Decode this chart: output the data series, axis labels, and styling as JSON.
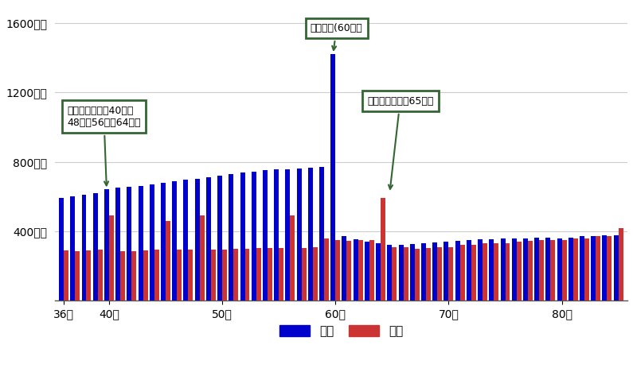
{
  "ages": [
    36,
    37,
    38,
    39,
    40,
    41,
    42,
    43,
    44,
    45,
    46,
    47,
    48,
    49,
    50,
    51,
    52,
    53,
    54,
    55,
    56,
    57,
    58,
    59,
    60,
    61,
    62,
    63,
    64,
    65,
    66,
    67,
    68,
    69,
    70,
    71,
    72,
    73,
    74,
    75,
    76,
    77,
    78,
    79,
    80,
    81,
    82,
    83,
    84,
    85
  ],
  "income": [
    590,
    600,
    610,
    620,
    640,
    650,
    655,
    660,
    670,
    680,
    690,
    695,
    700,
    710,
    720,
    730,
    740,
    745,
    750,
    755,
    755,
    760,
    765,
    770,
    1420,
    370,
    355,
    340,
    330,
    320,
    320,
    325,
    330,
    335,
    340,
    345,
    350,
    355,
    355,
    360,
    360,
    360,
    365,
    365,
    360,
    365,
    370,
    370,
    375,
    375
  ],
  "expense": [
    290,
    285,
    290,
    295,
    490,
    285,
    285,
    290,
    295,
    460,
    295,
    295,
    490,
    295,
    295,
    300,
    300,
    305,
    305,
    305,
    490,
    305,
    310,
    360,
    350,
    345,
    350,
    350,
    590,
    310,
    310,
    300,
    305,
    310,
    310,
    320,
    320,
    330,
    330,
    330,
    340,
    345,
    350,
    350,
    350,
    360,
    360,
    370,
    370,
    420
  ],
  "bar_color_income": "#0000cc",
  "bar_color_expense": "#cc3333",
  "ylim": [
    0,
    1700
  ],
  "yticks": [
    0,
    400,
    800,
    1200,
    1600
  ],
  "ytick_labels": [
    "",
    "400万円",
    "800万円",
    "1200万円",
    "1600万円"
  ],
  "xtick_ages": [
    36,
    40,
    50,
    60,
    70,
    80
  ],
  "xtick_labels": [
    "36歳",
    "40歳",
    "50歳",
    "60歳",
    "70歳",
    "80歳"
  ],
  "legend_income": "収入",
  "legend_expense": "支出",
  "annotation1_text": "車の買い替え（40歳、\n48歳、56歳、64歳）",
  "annotation2_text": "定年退職(60歳）",
  "annotation3_text": "年金受給開始（65歳）",
  "grid_color": "#cccccc",
  "background_color": "#ffffff",
  "ann_box_color": "#336633",
  "ann_arrow_color": "#336633"
}
